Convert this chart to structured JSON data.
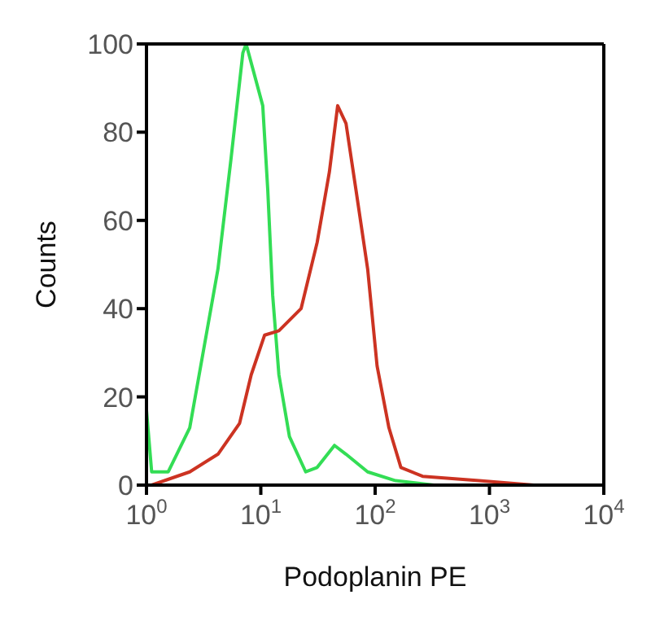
{
  "chart_data": {
    "type": "line",
    "xlabel": "Podoplanin PE",
    "ylabel": "Counts",
    "log": "x",
    "xlim": [
      1,
      10000
    ],
    "ylim": [
      0,
      100
    ],
    "xticks": [
      {
        "value": 1,
        "label": "10$^{0}$"
      },
      {
        "value": 10,
        "label": "10$^{1}$"
      },
      {
        "value": 100,
        "label": "10$^{2}$"
      },
      {
        "value": 1000,
        "label": "10$^{3}$"
      },
      {
        "value": 10000,
        "label": "10$^{4}$"
      }
    ],
    "yticks": [
      0,
      20,
      40,
      60,
      80,
      100
    ],
    "marker": "none",
    "line_style": "solid",
    "series": [
      {
        "color": "#33dd55",
        "x": [
          1,
          1.11,
          1.55,
          2.39,
          4.22,
          5.49,
          6.97,
          7.44,
          10.4,
          11.5,
          12.7,
          14.4,
          17.8,
          24.7,
          31.1,
          44.1,
          55.6,
          86,
          151,
          326,
          10000
        ],
        "values": [
          17,
          3,
          3,
          13,
          49,
          74,
          98,
          100,
          86,
          67,
          43,
          25,
          11,
          3,
          4,
          9,
          7,
          3,
          1,
          0,
          0
        ]
      },
      {
        "color": "#cc3322",
        "x": [
          1.11,
          2.39,
          4.22,
          6.52,
          8.24,
          10.8,
          14.4,
          22.5,
          31.1,
          39.8,
          47,
          55.6,
          67.9,
          86,
          104,
          132,
          168,
          260,
          810,
          2440,
          10000
        ],
        "values": [
          0,
          3,
          7,
          14,
          25,
          34,
          35,
          40,
          55,
          71,
          86,
          82,
          67,
          49,
          27,
          13,
          4,
          2,
          1,
          0,
          0
        ]
      }
    ]
  }
}
